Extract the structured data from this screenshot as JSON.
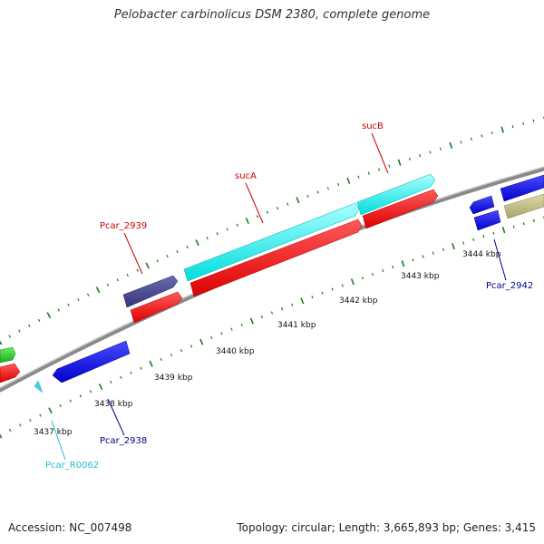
{
  "title": "Pelobacter carbinolicus DSM 2380, complete genome",
  "footer": {
    "accession": "Accession: NC_007498",
    "summary": "Topology: circular; Length: 3,665,893 bp; Genes: 3,415"
  },
  "colors": {
    "backbone": "#8a8a8a",
    "tick": "#1a7a1a",
    "forward_label": "#cc0000",
    "reverse_label": "#00008b",
    "rna_label": "#22bbdd"
  },
  "scale_labels": [
    "3437 kbp",
    "3438 kbp",
    "3439 kbp",
    "3440 kbp",
    "3441 kbp",
    "3442 kbp",
    "3443 kbp",
    "3444 kbp"
  ],
  "gene_labels": {
    "pcar_2939": "Pcar_2939",
    "suca": "sucA",
    "sucb": "sucB",
    "pcar_2942": "Pcar_2942",
    "pcar_2938": "Pcar_2938",
    "pcar_r0062": "Pcar_R0062"
  }
}
